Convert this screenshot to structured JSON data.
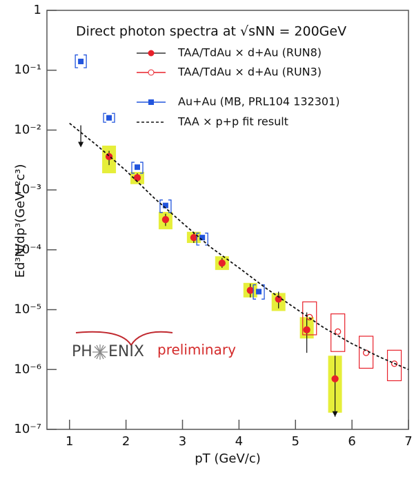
{
  "chart_data": {
    "type": "scatter",
    "title": "Direct photon spectra at √sNN = 200GeV",
    "x_label": "pT (GeV/c)",
    "y_label": "Ed³N/dp³(GeV⁻²c³)",
    "xlim": [
      0.6,
      7
    ],
    "xticks": [
      1,
      2,
      3,
      4,
      5,
      6,
      7
    ],
    "ylim": [
      1e-07,
      1
    ],
    "yticks": [
      {
        "value": 1e-07,
        "label": "10⁻⁷"
      },
      {
        "value": 1e-06,
        "label": "10⁻⁶"
      },
      {
        "value": 1e-05,
        "label": "10⁻⁵"
      },
      {
        "value": 0.0001,
        "label": "10⁻⁴"
      },
      {
        "value": 0.001,
        "label": "10⁻³"
      },
      {
        "value": 0.01,
        "label": "10⁻²"
      },
      {
        "value": 0.1,
        "label": "10⁻¹"
      },
      1
    ],
    "log_y": true,
    "series": [
      {
        "name": "TAA/TdAu × d+Au (RUN8)",
        "type": "scatter",
        "marker": "filled-circle",
        "color": "#e8202a",
        "box_color": "#e6ee3a",
        "x": [
          1.7,
          2.2,
          2.7,
          3.2,
          3.7,
          4.2,
          4.7,
          5.2,
          5.7
        ],
        "values": [
          0.0036,
          0.0016,
          0.00032,
          0.00016,
          6e-05,
          2.1e-05,
          1.5e-05,
          4.6e-06,
          7e-07
        ],
        "error_low": [
          0.0026,
          0.00135,
          0.00025,
          0.00013,
          5e-05,
          1.6e-05,
          1.05e-05,
          1.9e-06,
          null
        ],
        "error_high": [
          0.0045,
          0.0019,
          0.0004,
          0.00019,
          7.3e-05,
          2.7e-05,
          2e-05,
          9e-06,
          1.7e-06
        ],
        "syst_low": [
          0.0019,
          0.00125,
          0.00022,
          0.00013,
          4.6e-05,
          1.6e-05,
          9.5e-06,
          3.3e-06,
          1.9e-07
        ],
        "syst_high": [
          0.0055,
          0.002,
          0.00043,
          0.0002,
          7.8e-05,
          2.8e-05,
          1.9e-05,
          7.5e-06,
          1.7e-06
        ]
      },
      {
        "name": "TAA/TdAu × d+Au (RUN3)",
        "type": "scatter",
        "marker": "open-circle",
        "color": "#e8202a",
        "x": [
          5.25,
          5.75,
          6.25,
          6.75
        ],
        "values": [
          7.5e-06,
          4.3e-06,
          1.9e-06,
          1.25e-06
        ],
        "syst_low": [
          3.8e-06,
          2e-06,
          1.05e-06,
          6.5e-07
        ],
        "syst_high": [
          1.35e-05,
          8.5e-06,
          3.6e-06,
          2.1e-06
        ]
      },
      {
        "name": "Au+Au (MB, PRL104 132301)",
        "type": "scatter",
        "marker": "square",
        "color": "#2255dd",
        "x": [
          1.2,
          1.7,
          2.2,
          2.7,
          3.35,
          4.35
        ],
        "values": [
          0.14,
          0.016,
          0.0024,
          0.00055,
          0.00016,
          2e-05
        ],
        "syst_low": [
          0.11,
          0.0135,
          0.0019,
          0.00042,
          0.00012,
          1.5e-05
        ],
        "syst_high": [
          0.18,
          0.019,
          0.0029,
          0.00068,
          0.00019,
          2.6e-05
        ]
      },
      {
        "name": "TAA × p+p fit result",
        "type": "line",
        "color": "#111111",
        "x": [
          1.0,
          1.5,
          2.0,
          2.5,
          3.0,
          3.5,
          4.0,
          4.5,
          5.0,
          5.5,
          6.0,
          6.5,
          7.0
        ],
        "values": [
          0.013,
          0.0054,
          0.0021,
          0.00073,
          0.00028,
          0.00011,
          5e-05,
          2.2e-05,
          1.05e-05,
          5e-06,
          2.7e-06,
          1.6e-06,
          1e-06
        ]
      }
    ],
    "upper_limit": {
      "x": 1.2,
      "value": 0.012
    },
    "logo": {
      "left": "PH",
      "right": "ENIX"
    },
    "annotation": "preliminary"
  }
}
